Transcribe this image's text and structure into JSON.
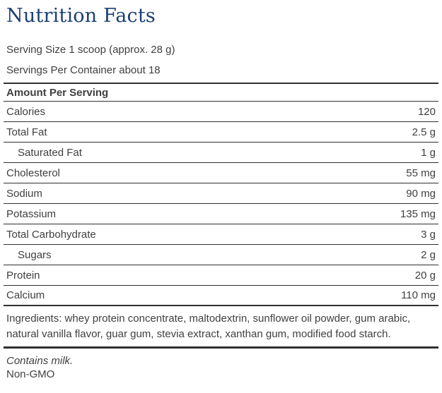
{
  "title": "Nutrition Facts",
  "serving": {
    "size": "Serving Size 1 scoop (approx. 28 g)",
    "per_container": "Servings Per Container about 18"
  },
  "table": {
    "header": "Amount Per Serving",
    "rows": [
      {
        "label": "Calories",
        "value": "120",
        "indent": false
      },
      {
        "label": "Total Fat",
        "value": "2.5 g",
        "indent": false
      },
      {
        "label": "Saturated Fat",
        "value": "1 g",
        "indent": true
      },
      {
        "label": "Cholesterol",
        "value": "55 mg",
        "indent": false
      },
      {
        "label": "Sodium",
        "value": "90 mg",
        "indent": false
      },
      {
        "label": "Potassium",
        "value": "135 mg",
        "indent": false
      },
      {
        "label": "Total Carbohydrate",
        "value": "3 g",
        "indent": false
      },
      {
        "label": "Sugars",
        "value": "2 g",
        "indent": true
      },
      {
        "label": "Protein",
        "value": "20 g",
        "indent": false
      },
      {
        "label": "Calcium",
        "value": "110 mg",
        "indent": false
      }
    ]
  },
  "ingredients": "Ingredients: whey protein concentrate, maltodextrin, sunflower oil powder, gum arabic, natural vanilla flavor, guar gum, stevia extract, xanthan gum, modified food starch.",
  "allergen": "Contains milk.",
  "claim": "Non-GMO",
  "colors": {
    "title": "#1b3f73",
    "text": "#3f3f3f",
    "rule": "#303030"
  }
}
